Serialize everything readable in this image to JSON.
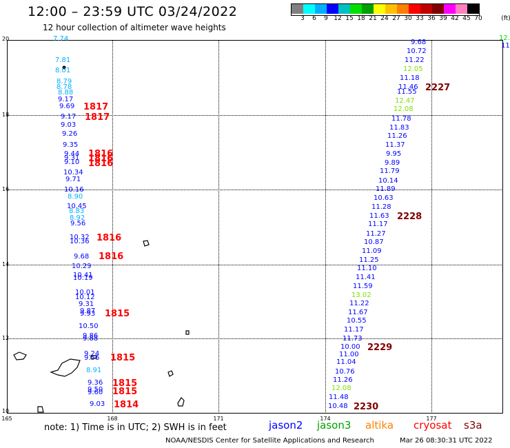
{
  "title": "12:00 – 23:59 UTC 03/24/2022",
  "subtitle": "12 hour collection of altimeter wave heights",
  "legend": {
    "units": "(ft)",
    "swatches": [
      "#808080",
      "#00ffff",
      "#00b0ff",
      "#0000ff",
      "#00c0c0",
      "#00e000",
      "#00a000",
      "#ffff00",
      "#ffc000",
      "#ff8000",
      "#ff0000",
      "#c00000",
      "#800000",
      "#ff00ff",
      "#ff80c0",
      "#000000"
    ],
    "labels": [
      "3",
      "6",
      "9",
      "12",
      "15",
      "18",
      "21",
      "24",
      "27",
      "30",
      "33",
      "36",
      "39",
      "42",
      "45",
      "70"
    ]
  },
  "axes": {
    "lat_labels": [
      "20",
      "18",
      "16",
      "14",
      "12",
      "10"
    ],
    "lon_labels": [
      "165",
      "168",
      "171",
      "174",
      "177"
    ]
  },
  "observations": [
    {
      "t": "7.74",
      "c": "#00b0ff"
    },
    {
      "t": "7.81",
      "c": "#00b0ff"
    },
    {
      "t": "8.01",
      "c": "#00b0ff"
    },
    {
      "t": "8.79",
      "c": "#00b0ff"
    },
    {
      "t": "8.78",
      "c": "#00b0ff"
    },
    {
      "t": "8.88",
      "c": "#00b0ff"
    },
    {
      "t": "9.17",
      "c": "#0000ff"
    },
    {
      "t": "9.69",
      "c": "#0000ff"
    },
    {
      "t": "9.17",
      "c": "#0000ff"
    },
    {
      "t": "9.03",
      "c": "#0000ff"
    },
    {
      "t": "9.26",
      "c": "#0000ff"
    },
    {
      "t": "9.35",
      "c": "#0000ff"
    },
    {
      "t": "9.44",
      "c": "#0000ff"
    },
    {
      "t": "9.31",
      "c": "#0000ff"
    },
    {
      "t": "9.10",
      "c": "#0000ff"
    },
    {
      "t": "10.34",
      "c": "#0000ff"
    },
    {
      "t": "9.71",
      "c": "#0000ff"
    },
    {
      "t": "10.16",
      "c": "#0000ff"
    },
    {
      "t": "8.90",
      "c": "#00b0ff"
    },
    {
      "t": "10.45",
      "c": "#0000ff"
    },
    {
      "t": "8.83",
      "c": "#00b0ff"
    },
    {
      "t": "8.92",
      "c": "#00b0ff"
    },
    {
      "t": "9.56",
      "c": "#0000ff"
    },
    {
      "t": "10.32",
      "c": "#0000ff"
    },
    {
      "t": "10.36",
      "c": "#0000ff"
    },
    {
      "t": "9.68",
      "c": "#0000ff"
    },
    {
      "t": "10.29",
      "c": "#0000ff"
    },
    {
      "t": "10.41",
      "c": "#0000ff"
    },
    {
      "t": "10.19",
      "c": "#0000ff"
    },
    {
      "t": "10.01",
      "c": "#0000ff"
    },
    {
      "t": "10.12",
      "c": "#0000ff"
    },
    {
      "t": "9.31",
      "c": "#0000ff"
    },
    {
      "t": "9.87",
      "c": "#0000ff"
    },
    {
      "t": "9.93",
      "c": "#0000ff"
    },
    {
      "t": "10.50",
      "c": "#0000ff"
    },
    {
      "t": "9.86",
      "c": "#0000ff"
    },
    {
      "t": "9.88",
      "c": "#0000ff"
    },
    {
      "t": "9.24",
      "c": "#0000ff"
    },
    {
      "t": "9.56",
      "c": "#0000ff"
    },
    {
      "t": "8.91",
      "c": "#00b0ff"
    },
    {
      "t": "9.36",
      "c": "#0000ff"
    },
    {
      "t": "9.50",
      "c": "#0000ff"
    },
    {
      "t": "9.60",
      "c": "#0000ff"
    },
    {
      "t": "9.03",
      "c": "#0000ff"
    },
    {
      "t": "12.",
      "c": "#00e000"
    },
    {
      "t": "11",
      "c": "#0000ff"
    },
    {
      "t": "9.68",
      "c": "#0000ff"
    },
    {
      "t": "10.72",
      "c": "#0000ff"
    },
    {
      "t": "11.22",
      "c": "#0000ff"
    },
    {
      "t": "12.05",
      "c": "#80e000"
    },
    {
      "t": "11.18",
      "c": "#0000ff"
    },
    {
      "t": "11.46",
      "c": "#0000ff"
    },
    {
      "t": "11.55",
      "c": "#0000ff"
    },
    {
      "t": "12.47",
      "c": "#80e000"
    },
    {
      "t": "12.08",
      "c": "#80e000"
    },
    {
      "t": "11.78",
      "c": "#0000ff"
    },
    {
      "t": "11.83",
      "c": "#0000ff"
    },
    {
      "t": "11.26",
      "c": "#0000ff"
    },
    {
      "t": "11.37",
      "c": "#0000ff"
    },
    {
      "t": "9.95",
      "c": "#0000ff"
    },
    {
      "t": "9.89",
      "c": "#0000ff"
    },
    {
      "t": "11.79",
      "c": "#0000ff"
    },
    {
      "t": "10.14",
      "c": "#0000ff"
    },
    {
      "t": "11.89",
      "c": "#0000ff"
    },
    {
      "t": "10.63",
      "c": "#0000ff"
    },
    {
      "t": "11.28",
      "c": "#0000ff"
    },
    {
      "t": "11.63",
      "c": "#0000ff"
    },
    {
      "t": "11.17",
      "c": "#0000ff"
    },
    {
      "t": "11.27",
      "c": "#0000ff"
    },
    {
      "t": "10.87",
      "c": "#0000ff"
    },
    {
      "t": "11.09",
      "c": "#0000ff"
    },
    {
      "t": "11.25",
      "c": "#0000ff"
    },
    {
      "t": "11.10",
      "c": "#0000ff"
    },
    {
      "t": "11.41",
      "c": "#0000ff"
    },
    {
      "t": "11.59",
      "c": "#0000ff"
    },
    {
      "t": "13.02",
      "c": "#80e000"
    },
    {
      "t": "11.22",
      "c": "#0000ff"
    },
    {
      "t": "11.67",
      "c": "#0000ff"
    },
    {
      "t": "10.55",
      "c": "#0000ff"
    },
    {
      "t": "11.17",
      "c": "#0000ff"
    },
    {
      "t": "11.73",
      "c": "#0000ff"
    },
    {
      "t": "10.00",
      "c": "#0000ff"
    },
    {
      "t": "11.00",
      "c": "#0000ff"
    },
    {
      "t": "11.04",
      "c": "#0000ff"
    },
    {
      "t": "10.76",
      "c": "#0000ff"
    },
    {
      "t": "11.26",
      "c": "#0000ff"
    },
    {
      "t": "12.08",
      "c": "#80e000"
    },
    {
      "t": "11.48",
      "c": "#0000ff"
    },
    {
      "t": "10.48",
      "c": "#0000ff"
    }
  ],
  "passes": [
    {
      "t": "1817",
      "c": "#ff0000"
    },
    {
      "t": "1817",
      "c": "#ff0000"
    },
    {
      "t": "1816",
      "c": "#ff0000"
    },
    {
      "t": "1816",
      "c": "#ff0000"
    },
    {
      "t": "1816",
      "c": "#ff0000"
    },
    {
      "t": "1816",
      "c": "#ff0000"
    },
    {
      "t": "1816",
      "c": "#ff0000"
    },
    {
      "t": "1815",
      "c": "#ff0000"
    },
    {
      "t": "1815",
      "c": "#ff0000"
    },
    {
      "t": "1815",
      "c": "#ff0000"
    },
    {
      "t": "1815",
      "c": "#ff0000"
    },
    {
      "t": "1814",
      "c": "#ff0000"
    },
    {
      "t": "2227",
      "c": "#800000"
    },
    {
      "t": "2228",
      "c": "#800000"
    },
    {
      "t": "2229",
      "c": "#800000"
    },
    {
      "t": "2230",
      "c": "#800000"
    }
  ],
  "note": "note: 1) Time is in UTC; 2) SWH is in feet",
  "satellites": [
    {
      "name": "jason2",
      "color": "#0000ff"
    },
    {
      "name": "jason3",
      "color": "#00a000"
    },
    {
      "name": "altika",
      "color": "#ff8000"
    },
    {
      "name": "cryosat",
      "color": "#ff0000"
    },
    {
      "name": "s3a",
      "color": "#800000"
    }
  ],
  "credit": "NOAA/NESDIS Center for Satellite Applications and Research",
  "generated": "Mar 26 08:30:31 UTC 2022"
}
